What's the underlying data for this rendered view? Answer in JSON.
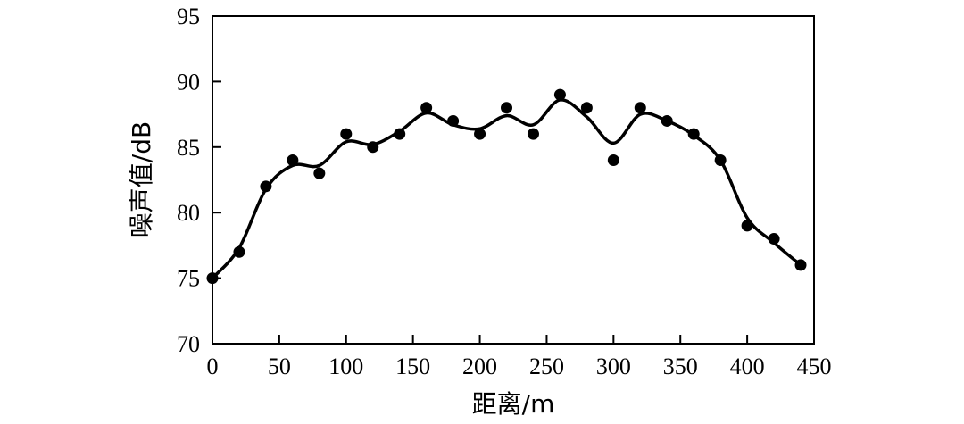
{
  "chart_data": {
    "type": "scatter",
    "xlabel": "距离/m",
    "ylabel": "噪声值/dB",
    "xlim": [
      0,
      450
    ],
    "ylim": [
      70,
      95
    ],
    "xticks": [
      0,
      50,
      100,
      150,
      200,
      250,
      300,
      350,
      400,
      450
    ],
    "yticks": [
      70,
      75,
      80,
      85,
      90,
      95
    ],
    "grid": false,
    "series": [
      {
        "type": "scatter",
        "marker": "filled-circle",
        "color": "#000000",
        "x": [
          0,
          20,
          40,
          60,
          80,
          100,
          120,
          140,
          160,
          180,
          200,
          220,
          240,
          260,
          280,
          300,
          320,
          340,
          360,
          380,
          400,
          420,
          440
        ],
        "y": [
          75,
          77,
          82,
          84,
          83,
          86,
          85,
          86,
          88,
          87,
          86,
          88,
          86,
          89,
          88,
          84,
          88,
          87,
          86,
          84,
          79,
          78,
          76
        ]
      },
      {
        "type": "line",
        "style": "smooth-fit",
        "color": "#000000",
        "x": [
          0,
          20,
          40,
          60,
          80,
          100,
          120,
          140,
          160,
          180,
          200,
          220,
          240,
          260,
          280,
          300,
          320,
          340,
          360,
          380,
          400,
          420,
          440
        ],
        "y": [
          75,
          77.3,
          81.8,
          83.6,
          83.6,
          85.4,
          85.2,
          86.2,
          87.6,
          86.7,
          86.4,
          87.4,
          86.7,
          88.6,
          87.3,
          85.3,
          87.5,
          87.0,
          85.9,
          84.0,
          79.6,
          77.7,
          76.0
        ]
      }
    ]
  }
}
